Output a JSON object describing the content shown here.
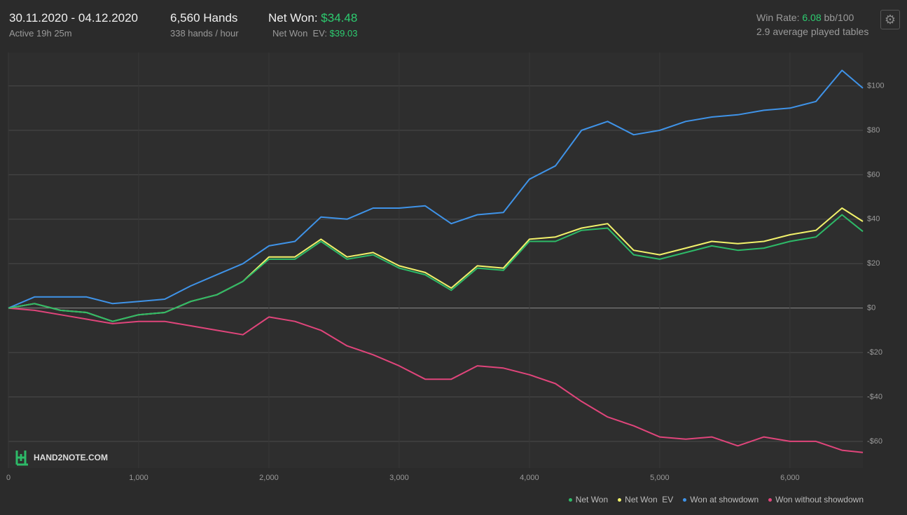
{
  "header": {
    "date_range": "30.11.2020 - 04.12.2020",
    "active": "Active 19h 25m",
    "hands": "6,560 Hands",
    "hands_rate": "338 hands / hour",
    "net_won_label": "Net Won:",
    "net_won_value": "$34.48",
    "net_won_ev_label": "Net Won  EV:",
    "net_won_ev_value": "$39.03",
    "win_rate_label": "Win Rate:",
    "win_rate_value": "6.08",
    "win_rate_unit": "bb/100",
    "tables": "2.9 average played tables",
    "logo": "HAND2NOTE.COM"
  },
  "chart_data": {
    "type": "line",
    "x": [
      0,
      200,
      400,
      600,
      800,
      1000,
      1200,
      1400,
      1600,
      1800,
      2000,
      2200,
      2400,
      2600,
      2800,
      3000,
      3200,
      3400,
      3600,
      3800,
      4000,
      4200,
      4400,
      4600,
      4800,
      5000,
      5200,
      5400,
      5600,
      5800,
      6000,
      6200,
      6400,
      6560
    ],
    "series": [
      {
        "name": "Won without showdown",
        "color": "#e0457b",
        "values": [
          0,
          -1,
          -3,
          -5,
          -7,
          -6,
          -6,
          -8,
          -10,
          -12,
          -4,
          -6,
          -10,
          -17,
          -21,
          -26,
          -32,
          -32,
          -26,
          -27,
          -30,
          -34,
          -42,
          -49,
          -53,
          -58,
          -59,
          -58,
          -62,
          -58,
          -60,
          -60,
          -64,
          -65
        ]
      },
      {
        "name": "Won at showdown",
        "color": "#3f93e8",
        "values": [
          0,
          5,
          5,
          5,
          2,
          3,
          4,
          10,
          15,
          20,
          28,
          30,
          41,
          40,
          45,
          45,
          46,
          38,
          42,
          43,
          58,
          64,
          80,
          84,
          78,
          80,
          84,
          86,
          87,
          89,
          90,
          93,
          107,
          99
        ]
      },
      {
        "name": "Net Won  EV",
        "color": "#f2f26b",
        "values": [
          0,
          2,
          -1,
          -2,
          -6,
          -3,
          -2,
          3,
          6,
          12,
          23,
          23,
          31,
          23,
          25,
          19,
          16,
          9,
          19,
          18,
          31,
          32,
          36,
          38,
          26,
          24,
          27,
          30,
          29,
          30,
          33,
          35,
          45,
          39
        ]
      },
      {
        "name": "Net Won",
        "color": "#2dba68",
        "values": [
          0,
          2,
          -1,
          -2,
          -6,
          -3,
          -2,
          3,
          6,
          12,
          22,
          22,
          30,
          22,
          24,
          18,
          15,
          8,
          18,
          17,
          30,
          30,
          35,
          36,
          24,
          22,
          25,
          28,
          26,
          27,
          30,
          32,
          42,
          34.5
        ]
      }
    ],
    "legend_order": [
      3,
      2,
      1,
      0
    ],
    "xlim": [
      0,
      6560
    ],
    "ylim": [
      -72,
      115
    ],
    "xticks": [
      0,
      {
        "value": 1000,
        "label": "1,000"
      },
      {
        "value": 2000,
        "label": "2,000"
      },
      {
        "value": 3000,
        "label": "3,000"
      },
      {
        "value": 4000,
        "label": "4,000"
      },
      {
        "value": 5000,
        "label": "5,000"
      },
      {
        "value": 6000,
        "label": "6,000"
      }
    ],
    "yticks": [
      {
        "value": -60,
        "label": "-$60"
      },
      {
        "value": -40,
        "label": "-$40"
      },
      {
        "value": -20,
        "label": "-$20"
      },
      {
        "value": 0,
        "label": "$0"
      },
      {
        "value": 20,
        "label": "$20"
      },
      {
        "value": 40,
        "label": "$40"
      },
      {
        "value": 60,
        "label": "$60"
      },
      {
        "value": 80,
        "label": "$80"
      },
      {
        "value": 100,
        "label": "$100"
      }
    ],
    "grid": true
  }
}
